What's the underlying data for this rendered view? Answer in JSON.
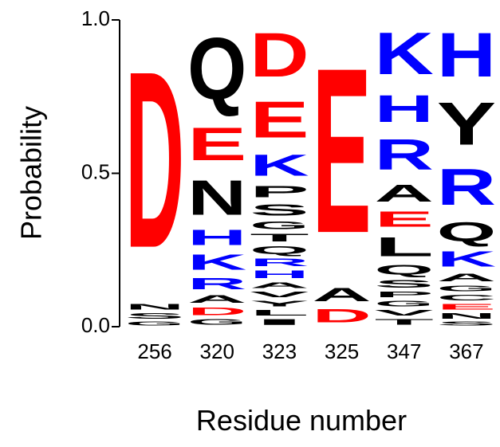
{
  "chart_data": {
    "type": "logo",
    "xlabel": "Residue number",
    "ylabel": "Probability",
    "categories": [
      "256",
      "320",
      "323",
      "325",
      "347",
      "367"
    ],
    "ylim": [
      0,
      1
    ],
    "yticks": [
      {
        "value": 0,
        "label": "0.0"
      },
      {
        "value": 0.5,
        "label": "0.5"
      },
      {
        "value": 1,
        "label": "1.0"
      }
    ],
    "letter_colors": {
      "D": "#ff0000",
      "E": "#ff0000",
      "K": "#0000ff",
      "R": "#0000ff",
      "H": "#0000ff",
      "other": "#000000"
    },
    "stacks": [
      [
        {
          "letter": "G",
          "value": 0.02
        },
        {
          "letter": "S",
          "value": 0.03
        },
        {
          "letter": "N",
          "value": 0.03
        },
        {
          "letter": "D",
          "value": 0.92
        }
      ],
      [
        {
          "letter": "G",
          "value": 0.03
        },
        {
          "letter": "D",
          "value": 0.04
        },
        {
          "letter": "A",
          "value": 0.04
        },
        {
          "letter": "R",
          "value": 0.06
        },
        {
          "letter": "K",
          "value": 0.08
        },
        {
          "letter": "H",
          "value": 0.08
        },
        {
          "letter": "N",
          "value": 0.18
        },
        {
          "letter": "E",
          "value": 0.17
        },
        {
          "letter": "Q",
          "value": 0.32
        }
      ],
      [
        {
          "letter": "I",
          "value": 0.03
        },
        {
          "letter": "L",
          "value": 0.03
        },
        {
          "letter": "Y",
          "value": 0.03
        },
        {
          "letter": "V",
          "value": 0.03
        },
        {
          "letter": "A",
          "value": 0.03
        },
        {
          "letter": "H",
          "value": 0.04
        },
        {
          "letter": "R",
          "value": 0.04
        },
        {
          "letter": "Q",
          "value": 0.04
        },
        {
          "letter": "T",
          "value": 0.04
        },
        {
          "letter": "G",
          "value": 0.04
        },
        {
          "letter": "S",
          "value": 0.06
        },
        {
          "letter": "P",
          "value": 0.06
        },
        {
          "letter": "K",
          "value": 0.11
        },
        {
          "letter": "E",
          "value": 0.19
        },
        {
          "letter": "D",
          "value": 0.23
        }
      ],
      [
        {
          "letter": "D",
          "value": 0.07
        },
        {
          "letter": "A",
          "value": 0.07
        },
        {
          "letter": "E",
          "value": 0.86
        }
      ],
      [
        {
          "letter": "T",
          "value": 0.03
        },
        {
          "letter": "V",
          "value": 0.03
        },
        {
          "letter": "G",
          "value": 0.03
        },
        {
          "letter": "P",
          "value": 0.03
        },
        {
          "letter": "S",
          "value": 0.04
        },
        {
          "letter": "Q",
          "value": 0.05
        },
        {
          "letter": "L",
          "value": 0.1
        },
        {
          "letter": "E",
          "value": 0.08
        },
        {
          "letter": "A",
          "value": 0.09
        },
        {
          "letter": "R",
          "value": 0.16
        },
        {
          "letter": "H",
          "value": 0.14
        },
        {
          "letter": "K",
          "value": 0.22
        }
      ],
      [
        {
          "letter": "S",
          "value": 0.02
        },
        {
          "letter": "N",
          "value": 0.03
        },
        {
          "letter": "E",
          "value": 0.03
        },
        {
          "letter": "C",
          "value": 0.03
        },
        {
          "letter": "G",
          "value": 0.03
        },
        {
          "letter": "A",
          "value": 0.04
        },
        {
          "letter": "K",
          "value": 0.08
        },
        {
          "letter": "Q",
          "value": 0.1
        },
        {
          "letter": "R",
          "value": 0.19
        },
        {
          "letter": "Y",
          "value": 0.22
        },
        {
          "letter": "H",
          "value": 0.23
        }
      ]
    ]
  }
}
